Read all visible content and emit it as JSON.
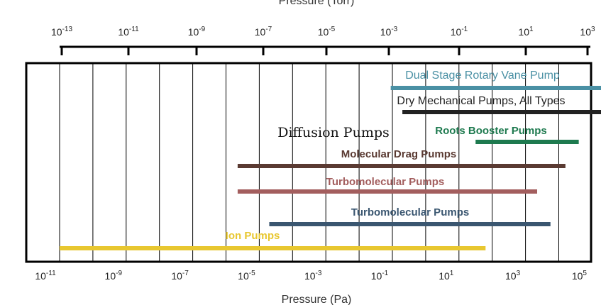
{
  "chart_data": {
    "type": "range-bar",
    "top_axis": {
      "title": "Pressure (Torr)",
      "ticks": [
        {
          "base": "10",
          "exp": "-13"
        },
        {
          "base": "10",
          "exp": "-11"
        },
        {
          "base": "10",
          "exp": "-9"
        },
        {
          "base": "10",
          "exp": "-7"
        },
        {
          "base": "10",
          "exp": "-5"
        },
        {
          "base": "10",
          "exp": "-3"
        },
        {
          "base": "10",
          "exp": "-1"
        },
        {
          "base": "10",
          "exp": "1"
        },
        {
          "base": "10",
          "exp": "3"
        }
      ]
    },
    "bottom_axis": {
      "title": "Pressure (Pa)",
      "range_log10": [
        -12,
        7
      ],
      "ticks": [
        {
          "base": "10",
          "exp": "-11"
        },
        {
          "base": "10",
          "exp": "-9"
        },
        {
          "base": "10",
          "exp": "-7"
        },
        {
          "base": "10",
          "exp": "-5"
        },
        {
          "base": "10",
          "exp": "-3"
        },
        {
          "base": "10",
          "exp": "-1"
        },
        {
          "base": "10",
          "exp": "1"
        },
        {
          "base": "10",
          "exp": "3"
        },
        {
          "base": "10",
          "exp": "5"
        }
      ],
      "gridline_exponents": [
        -11,
        -10,
        -9,
        -8,
        -7,
        -6,
        -5,
        -4,
        -3,
        -2,
        -1,
        0,
        1,
        2,
        3,
        4,
        5,
        6
      ]
    },
    "series": [
      {
        "name": "Dual Stage Rotary Vane Pump",
        "min_pa_log10": -1.05,
        "max_pa_log10": 5.85,
        "color": "#4a90a4"
      },
      {
        "name": "Dry Mechanical Pumps, All Types",
        "min_pa_log10": -0.7,
        "max_pa_log10": 5.85,
        "color": "#222222"
      },
      {
        "name": "Diffusion Pumps",
        "min_pa_log10": null,
        "max_pa_log10": null,
        "color": "#111111"
      },
      {
        "name": "Roots Booster Pumps",
        "min_pa_log10": 1.5,
        "max_pa_log10": 4.6,
        "color": "#1e7a4f"
      },
      {
        "name": "Molecular Drag Pumps",
        "min_pa_log10": -5.65,
        "max_pa_log10": 4.2,
        "color": "#5a3a32"
      },
      {
        "name": "Turbomolecular Pumps",
        "min_pa_log10": -5.65,
        "max_pa_log10": 3.35,
        "color": "#a35e5e"
      },
      {
        "name": "Turbomolecular Pumps",
        "min_pa_log10": -4.7,
        "max_pa_log10": 3.75,
        "color": "#3a5670"
      },
      {
        "name": "Ion Pumps",
        "min_pa_log10": -11.0,
        "max_pa_log10": 1.8,
        "color": "#e8c730"
      }
    ]
  }
}
